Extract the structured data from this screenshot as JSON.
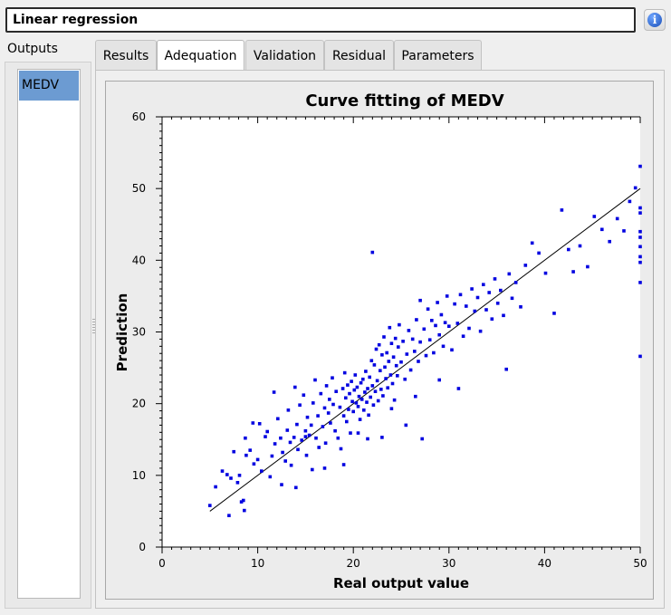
{
  "header": {
    "title": "Linear regression",
    "info_icon": "info-icon"
  },
  "sidebar": {
    "label": "Outputs",
    "items": [
      {
        "label": "MEDV",
        "selected": true
      }
    ]
  },
  "tabs": [
    {
      "label": "Results",
      "active": false
    },
    {
      "label": "Adequation",
      "active": true
    },
    {
      "label": "Validation",
      "active": false
    },
    {
      "label": "Residual",
      "active": false
    },
    {
      "label": "Parameters",
      "active": false
    }
  ],
  "colors": {
    "points": "#0000e0",
    "fit_line": "#000000",
    "selection": "#6c9bd2"
  },
  "chart_data": {
    "type": "scatter",
    "title": "Curve fitting of MEDV",
    "xlabel": "Real output value",
    "ylabel": "Prediction",
    "xlim": [
      0,
      50
    ],
    "ylim": [
      0,
      60
    ],
    "xticks": [
      0,
      10,
      20,
      30,
      40,
      50
    ],
    "yticks": [
      0,
      10,
      20,
      30,
      40,
      50,
      60
    ],
    "grid": false,
    "fit_line": {
      "from": [
        5,
        5
      ],
      "to": [
        50,
        50
      ]
    },
    "points": [
      [
        5.0,
        5.8
      ],
      [
        5.6,
        8.4
      ],
      [
        6.3,
        10.6
      ],
      [
        6.8,
        10.1
      ],
      [
        7.0,
        4.4
      ],
      [
        7.2,
        9.6
      ],
      [
        7.5,
        13.3
      ],
      [
        7.9,
        9.0
      ],
      [
        8.1,
        10.0
      ],
      [
        8.3,
        6.3
      ],
      [
        8.5,
        6.5
      ],
      [
        8.6,
        5.1
      ],
      [
        8.8,
        12.8
      ],
      [
        8.7,
        15.2
      ],
      [
        9.2,
        13.5
      ],
      [
        9.6,
        11.6
      ],
      [
        10.0,
        12.2
      ],
      [
        10.2,
        17.2
      ],
      [
        10.4,
        10.6
      ],
      [
        10.8,
        15.4
      ],
      [
        11.0,
        16.1
      ],
      [
        11.3,
        9.8
      ],
      [
        11.5,
        12.7
      ],
      [
        11.8,
        14.4
      ],
      [
        11.7,
        21.6
      ],
      [
        12.1,
        17.9
      ],
      [
        12.4,
        15.2
      ],
      [
        12.6,
        13.2
      ],
      [
        12.9,
        12.0
      ],
      [
        13.1,
        16.3
      ],
      [
        13.2,
        19.1
      ],
      [
        13.4,
        14.6
      ],
      [
        13.5,
        11.4
      ],
      [
        13.8,
        15.3
      ],
      [
        13.9,
        22.3
      ],
      [
        14.1,
        17.1
      ],
      [
        14.2,
        13.6
      ],
      [
        14.4,
        19.8
      ],
      [
        14.6,
        14.9
      ],
      [
        14.8,
        21.2
      ],
      [
        15.0,
        16.2
      ],
      [
        15.1,
        12.8
      ],
      [
        15.2,
        18.1
      ],
      [
        15.4,
        15.6
      ],
      [
        15.6,
        17.0
      ],
      [
        15.7,
        10.8
      ],
      [
        15.8,
        20.1
      ],
      [
        16.0,
        23.3
      ],
      [
        16.1,
        15.2
      ],
      [
        16.3,
        18.3
      ],
      [
        16.4,
        13.9
      ],
      [
        16.6,
        21.4
      ],
      [
        16.8,
        16.8
      ],
      [
        17.0,
        19.4
      ],
      [
        17.1,
        14.5
      ],
      [
        17.2,
        22.5
      ],
      [
        17.4,
        18.7
      ],
      [
        17.5,
        20.6
      ],
      [
        17.6,
        17.3
      ],
      [
        17.8,
        23.6
      ],
      [
        17.9,
        19.9
      ],
      [
        18.1,
        16.2
      ],
      [
        18.2,
        21.7
      ],
      [
        18.4,
        15.2
      ],
      [
        18.6,
        19.5
      ],
      [
        18.7,
        13.7
      ],
      [
        18.9,
        22.1
      ],
      [
        19.0,
        18.3
      ],
      [
        19.1,
        24.3
      ],
      [
        19.2,
        20.8
      ],
      [
        19.3,
        17.5
      ],
      [
        19.4,
        22.6
      ],
      [
        19.5,
        19.2
      ],
      [
        19.6,
        21.4
      ],
      [
        19.7,
        15.9
      ],
      [
        19.8,
        23.1
      ],
      [
        19.9,
        20.3
      ],
      [
        20.0,
        18.9
      ],
      [
        20.1,
        21.9
      ],
      [
        20.2,
        24.0
      ],
      [
        20.3,
        20.1
      ],
      [
        20.4,
        22.3
      ],
      [
        20.5,
        19.6
      ],
      [
        20.6,
        21.0
      ],
      [
        20.7,
        17.8
      ],
      [
        20.8,
        22.9
      ],
      [
        20.9,
        20.6
      ],
      [
        21.0,
        23.4
      ],
      [
        21.1,
        19.1
      ],
      [
        21.2,
        21.6
      ],
      [
        21.3,
        24.5
      ],
      [
        21.4,
        20.2
      ],
      [
        21.5,
        22.1
      ],
      [
        21.6,
        18.4
      ],
      [
        21.7,
        23.7
      ],
      [
        21.8,
        20.9
      ],
      [
        21.9,
        26.0
      ],
      [
        22.0,
        22.5
      ],
      [
        22.1,
        19.8
      ],
      [
        22.2,
        25.4
      ],
      [
        22.3,
        21.7
      ],
      [
        22.4,
        27.6
      ],
      [
        22.5,
        23.2
      ],
      [
        22.6,
        20.4
      ],
      [
        22.7,
        28.2
      ],
      [
        22.8,
        24.6
      ],
      [
        22.9,
        22.0
      ],
      [
        23.0,
        26.8
      ],
      [
        23.1,
        21.1
      ],
      [
        23.2,
        29.3
      ],
      [
        23.3,
        25.1
      ],
      [
        23.4,
        23.5
      ],
      [
        23.5,
        27.1
      ],
      [
        23.6,
        22.2
      ],
      [
        23.7,
        25.9
      ],
      [
        23.8,
        30.6
      ],
      [
        23.9,
        24.0
      ],
      [
        24.0,
        28.4
      ],
      [
        24.1,
        22.8
      ],
      [
        24.2,
        26.5
      ],
      [
        24.3,
        20.5
      ],
      [
        24.4,
        29.1
      ],
      [
        24.5,
        25.3
      ],
      [
        24.6,
        23.9
      ],
      [
        24.7,
        27.9
      ],
      [
        24.8,
        31.0
      ],
      [
        25.0,
        25.8
      ],
      [
        25.2,
        28.7
      ],
      [
        25.4,
        23.4
      ],
      [
        25.6,
        26.9
      ],
      [
        25.8,
        30.2
      ],
      [
        26.0,
        24.7
      ],
      [
        26.2,
        29.0
      ],
      [
        26.4,
        27.3
      ],
      [
        26.6,
        31.7
      ],
      [
        26.8,
        25.9
      ],
      [
        27.0,
        28.6
      ],
      [
        27.2,
        15.1
      ],
      [
        27.4,
        30.4
      ],
      [
        27.6,
        26.7
      ],
      [
        27.8,
        33.2
      ],
      [
        28.0,
        28.9
      ],
      [
        28.2,
        31.6
      ],
      [
        28.4,
        27.1
      ],
      [
        28.6,
        30.9
      ],
      [
        28.8,
        34.1
      ],
      [
        29.0,
        29.6
      ],
      [
        29.2,
        32.4
      ],
      [
        29.4,
        28.0
      ],
      [
        29.6,
        31.3
      ],
      [
        29.8,
        35.0
      ],
      [
        30.0,
        30.8
      ],
      [
        30.3,
        27.5
      ],
      [
        30.6,
        33.9
      ],
      [
        30.9,
        31.2
      ],
      [
        31.2,
        35.2
      ],
      [
        31.5,
        29.4
      ],
      [
        31.8,
        33.6
      ],
      [
        32.1,
        30.5
      ],
      [
        32.4,
        36.0
      ],
      [
        32.7,
        32.9
      ],
      [
        33.0,
        34.8
      ],
      [
        33.3,
        30.1
      ],
      [
        33.6,
        36.6
      ],
      [
        33.9,
        33.1
      ],
      [
        34.2,
        35.5
      ],
      [
        34.5,
        31.8
      ],
      [
        34.8,
        37.4
      ],
      [
        35.1,
        34.0
      ],
      [
        35.4,
        35.8
      ],
      [
        35.7,
        32.3
      ],
      [
        36.0,
        24.8
      ],
      [
        36.3,
        38.1
      ],
      [
        36.6,
        34.7
      ],
      [
        37.0,
        36.9
      ],
      [
        37.5,
        33.5
      ],
      [
        38.0,
        39.3
      ],
      [
        38.7,
        42.4
      ],
      [
        39.4,
        41.0
      ],
      [
        40.1,
        38.2
      ],
      [
        41.0,
        32.6
      ],
      [
        41.8,
        47.0
      ],
      [
        42.5,
        41.5
      ],
      [
        43.0,
        38.4
      ],
      [
        43.7,
        42.0
      ],
      [
        44.5,
        39.1
      ],
      [
        45.2,
        46.1
      ],
      [
        46.0,
        44.3
      ],
      [
        46.8,
        42.6
      ],
      [
        47.6,
        45.8
      ],
      [
        48.3,
        44.1
      ],
      [
        48.9,
        48.2
      ],
      [
        49.5,
        50.1
      ],
      [
        50.0,
        53.1
      ],
      [
        50.0,
        47.3
      ],
      [
        50.0,
        44.0
      ],
      [
        50.0,
        41.9
      ],
      [
        50.0,
        40.5
      ],
      [
        50.0,
        36.9
      ],
      [
        50.0,
        26.6
      ],
      [
        50.0,
        46.6
      ],
      [
        50.0,
        43.2
      ],
      [
        50.0,
        39.7
      ],
      [
        22.0,
        41.1
      ],
      [
        26.5,
        21.0
      ],
      [
        25.5,
        17.0
      ],
      [
        21.5,
        15.1
      ],
      [
        23.0,
        15.3
      ],
      [
        19.0,
        11.5
      ],
      [
        17.0,
        11.0
      ],
      [
        15.0,
        15.4
      ],
      [
        29.0,
        23.3
      ],
      [
        27.0,
        34.4
      ],
      [
        31.0,
        22.1
      ],
      [
        24.0,
        19.3
      ],
      [
        20.5,
        15.9
      ],
      [
        12.5,
        8.7
      ],
      [
        14.0,
        8.3
      ],
      [
        9.5,
        17.3
      ]
    ]
  }
}
